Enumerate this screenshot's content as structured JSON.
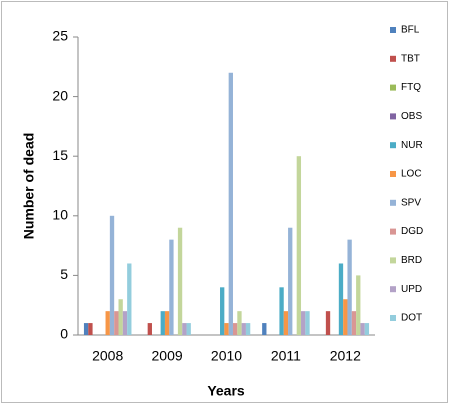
{
  "chart_data": {
    "type": "bar",
    "x_label": "Years",
    "y_label": "Number of dead",
    "categories": [
      "2008",
      "2009",
      "2010",
      "2011",
      "2012"
    ],
    "series": [
      {
        "name": "BFL",
        "color": "#4f81bd",
        "values": [
          1,
          0,
          0,
          1,
          0
        ]
      },
      {
        "name": "TBT",
        "color": "#c0504d",
        "values": [
          1,
          1,
          0,
          0,
          2
        ]
      },
      {
        "name": "FTQ",
        "color": "#9bbb59",
        "values": [
          0,
          0,
          0,
          0,
          0
        ]
      },
      {
        "name": "OBS",
        "color": "#8064a2",
        "values": [
          0,
          0,
          0,
          0,
          0
        ]
      },
      {
        "name": "NUR",
        "color": "#4bacc6",
        "values": [
          0,
          2,
          4,
          4,
          6
        ]
      },
      {
        "name": "LOC",
        "color": "#f79646",
        "values": [
          2,
          2,
          1,
          2,
          3
        ]
      },
      {
        "name": "SPV",
        "color": "#95b3d7",
        "values": [
          10,
          8,
          22,
          9,
          8
        ]
      },
      {
        "name": "DGD",
        "color": "#d99694",
        "values": [
          2,
          0,
          1,
          0,
          2
        ]
      },
      {
        "name": "BRD",
        "color": "#c3d69b",
        "values": [
          3,
          9,
          2,
          15,
          5
        ]
      },
      {
        "name": "UPD",
        "color": "#b3a2c7",
        "values": [
          2,
          1,
          1,
          2,
          1
        ]
      },
      {
        "name": "DOT",
        "color": "#93cddd",
        "values": [
          6,
          1,
          1,
          2,
          1
        ]
      }
    ],
    "ylim": [
      0,
      25
    ],
    "yticks": [
      0,
      5,
      10,
      15,
      20,
      25
    ],
    "grid": false,
    "legend": "right"
  }
}
